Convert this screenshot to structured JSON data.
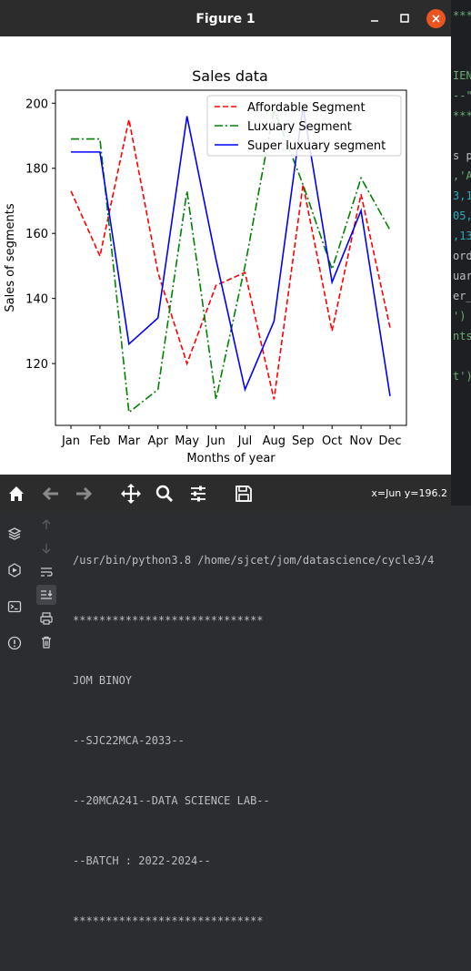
{
  "window": {
    "title": "Figure 1"
  },
  "toolbar": {
    "coordinates": "x=Jun y=196.2",
    "tools": [
      "home-icon",
      "back-icon",
      "forward-icon",
      "pan-icon",
      "zoom-icon",
      "configure-icon",
      "save-icon"
    ]
  },
  "chart_data": {
    "type": "line",
    "title": "Sales data",
    "xlabel": "Months of year",
    "ylabel": "Sales of segments",
    "categories": [
      "Jan",
      "Feb",
      "Mar",
      "Apr",
      "May",
      "Jun",
      "Jul",
      "Aug",
      "Sep",
      "Oct",
      "Nov",
      "Dec"
    ],
    "ylim": [
      101,
      204
    ],
    "yticks": [
      120,
      140,
      160,
      180,
      200
    ],
    "legend_position": "top-right",
    "grid": false,
    "series": [
      {
        "name": "Affordable Segment",
        "color": "#ff0000",
        "style": "dashed",
        "values": [
          173,
          153,
          195,
          148,
          120,
          144,
          148,
          109,
          175,
          130,
          172,
          131
        ]
      },
      {
        "name": "Luxuary Segment",
        "color": "#008000",
        "style": "dashdot",
        "values": [
          189,
          189,
          105,
          112,
          173,
          109,
          150,
          198,
          175,
          149,
          177,
          161
        ]
      },
      {
        "name": "Super luxuary segment",
        "color": "#0000ff",
        "style": "solid",
        "values": [
          185,
          185,
          126,
          134,
          196,
          152,
          112,
          133,
          199,
          145,
          167,
          110
        ]
      }
    ]
  },
  "console": {
    "lines": [
      "/usr/bin/python3.8 /home/sjcet/jom/datascience/cycle3/4",
      "*****************************",
      "JOM BINOY",
      "--SJC22MCA-2033--",
      "--20MCA241--DATA SCIENCE LAB--",
      "--BATCH : 2022-2024--",
      "*****************************"
    ]
  },
  "ide_snippets": [
    "***",
    "IEN",
    "--\"",
    "***",
    "s p",
    ",'A",
    "3,1",
    "05,",
    ",13",
    "ord",
    "uar",
    "er_",
    "')",
    "nts",
    "t')"
  ]
}
